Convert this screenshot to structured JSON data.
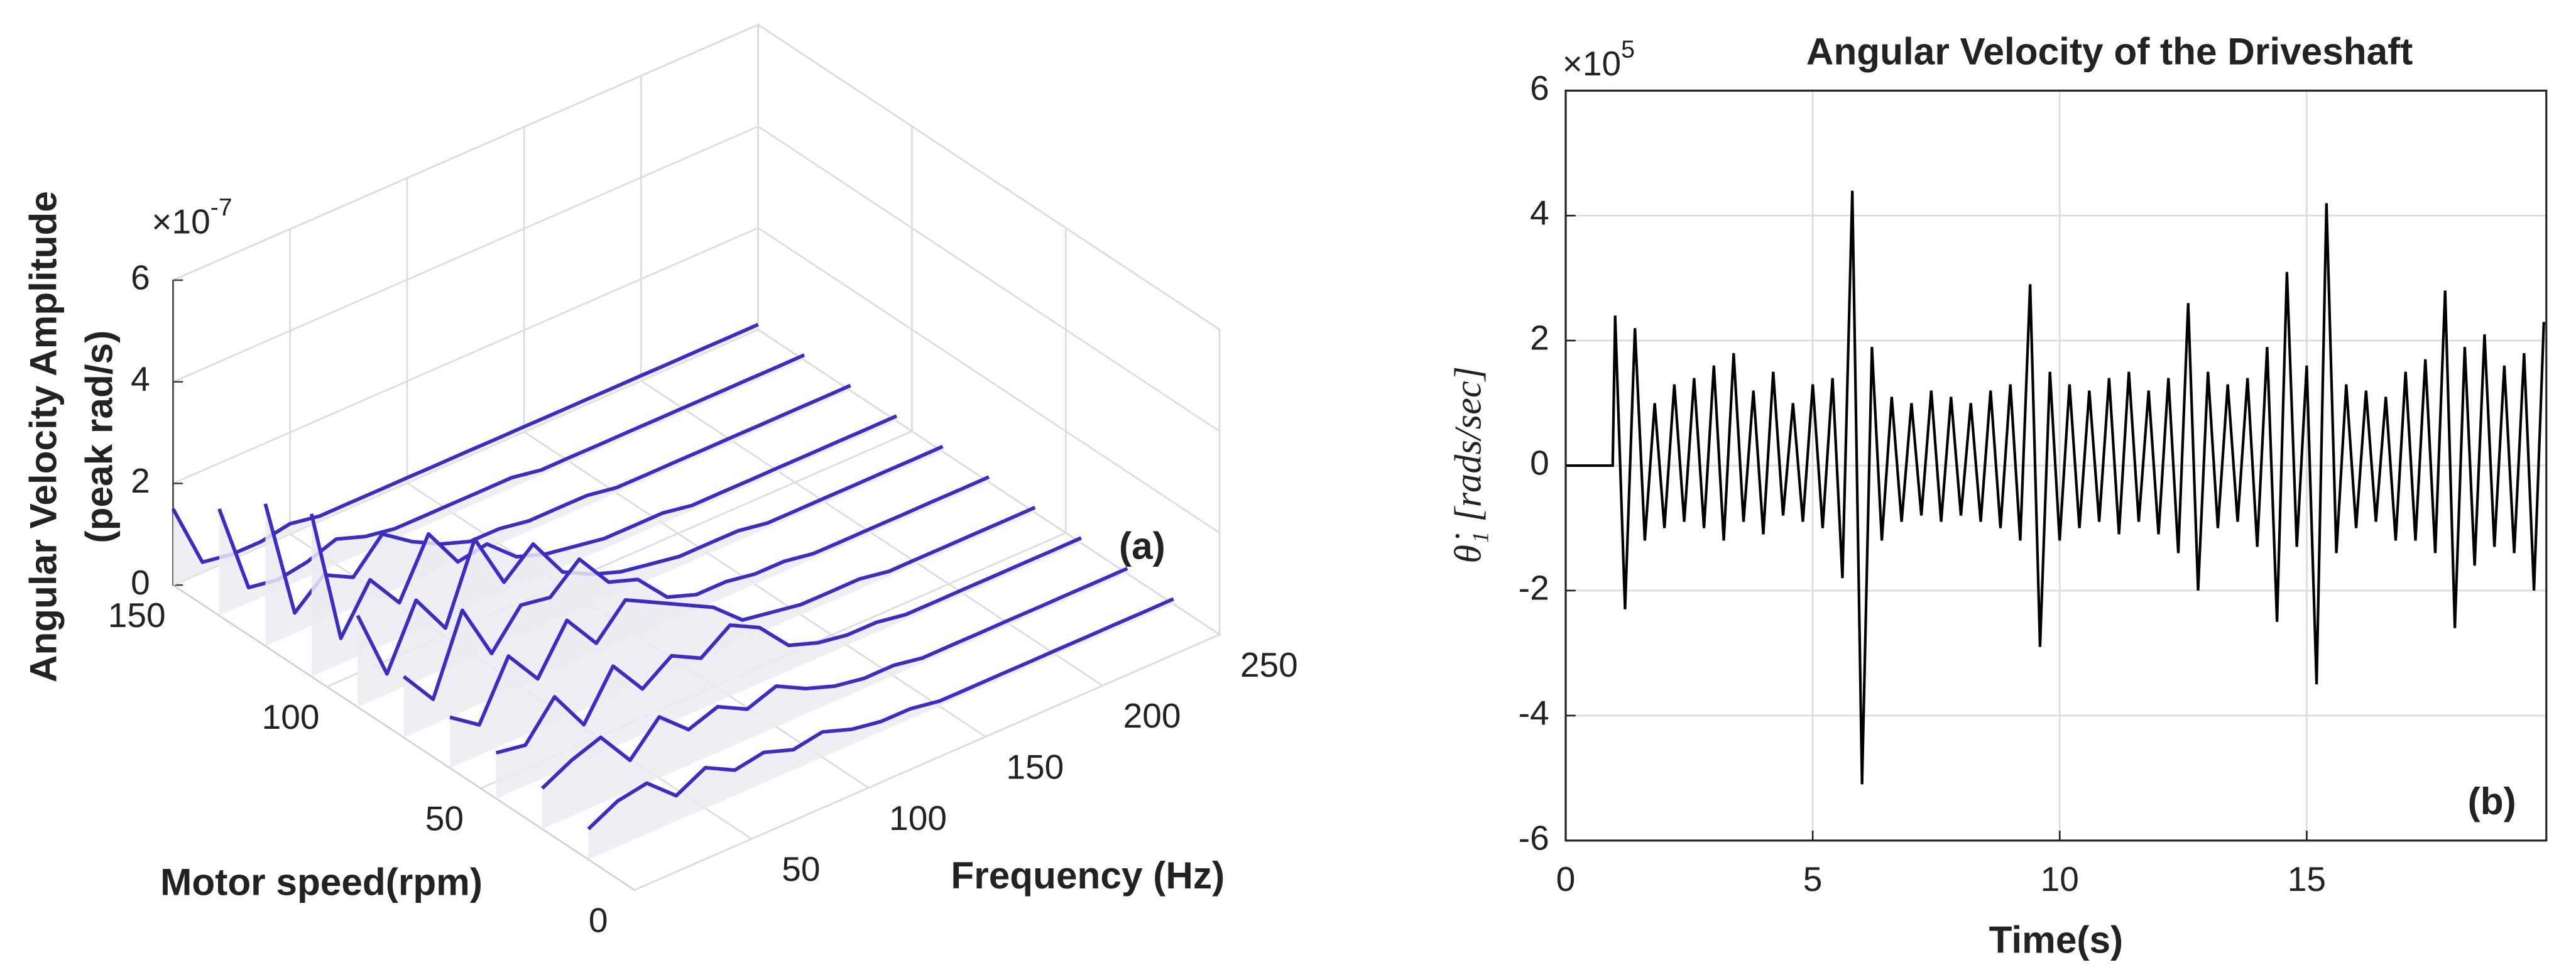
{
  "chart_data": [
    {
      "type": "waterfall",
      "zlabel": [
        "Angular Velocity Amplitude",
        "(peak rad/s)"
      ],
      "zmultiplier": {
        "base": "×10",
        "exponent": "-7"
      },
      "xlabel": "Frequency (Hz)",
      "ylabel": "Motor speed(rpm)",
      "panel_label": "(a)",
      "color": "#3a2cc4",
      "xlim": [
        0,
        250
      ],
      "ylim": [
        0,
        150
      ],
      "zlim": [
        0,
        6
      ],
      "xticks": [
        50,
        100,
        150,
        200,
        250
      ],
      "yticks": [
        0,
        50,
        100,
        150
      ],
      "zticks": [
        0,
        2,
        4,
        6
      ],
      "x": [
        0,
        12.5,
        25,
        37.5,
        50,
        62.5,
        75,
        87.5,
        100,
        112.5,
        125,
        137.5,
        150,
        162.5,
        175,
        187.5,
        200,
        212.5,
        225,
        237.5,
        250
      ],
      "series": [
        {
          "speed": 150,
          "values": [
            1.5,
            0.2,
            0.1,
            0.1,
            0.2,
            0.1,
            0.1,
            0.1,
            0.1,
            0.1,
            0.1,
            0.1,
            0.1,
            0.1,
            0.1,
            0.1,
            0.1,
            0.1,
            0.1,
            0.1,
            0.1
          ]
        },
        {
          "speed": 135,
          "values": [
            2.1,
            0.3,
            0.2,
            0.3,
            0.5,
            0.3,
            0.2,
            0.2,
            0.2,
            0.2,
            0.2,
            0.1,
            0.1,
            0.1,
            0.1,
            0.1,
            0.1,
            0.1,
            0.1,
            0.1,
            0.1
          ]
        },
        {
          "speed": 120,
          "values": [
            2.8,
            0.4,
            0.9,
            0.6,
            1.2,
            0.8,
            0.5,
            0.3,
            0.3,
            0.2,
            0.2,
            0.2,
            0.1,
            0.1,
            0.1,
            0.1,
            0.1,
            0.1,
            0.1,
            0.1,
            0.1
          ]
        },
        {
          "speed": 105,
          "values": [
            3.2,
            0.5,
            1.4,
            0.7,
            1.8,
            1.0,
            1.1,
            0.6,
            0.4,
            0.3,
            0.2,
            0.2,
            0.2,
            0.1,
            0.1,
            0.1,
            0.1,
            0.1,
            0.1,
            0.1,
            0.1
          ]
        },
        {
          "speed": 90,
          "values": [
            1.8,
            0.4,
            1.6,
            0.8,
            2.3,
            1.2,
            1.7,
            0.9,
            0.6,
            0.4,
            0.3,
            0.2,
            0.2,
            0.2,
            0.1,
            0.1,
            0.1,
            0.1,
            0.1,
            0.1,
            0.1
          ]
        },
        {
          "speed": 75,
          "values": [
            1.2,
            0.5,
            2.0,
            0.9,
            1.6,
            1.5,
            2.0,
            1.3,
            1.1,
            0.5,
            0.3,
            0.3,
            0.2,
            0.2,
            0.1,
            0.1,
            0.1,
            0.1,
            0.1,
            0.1,
            0.1
          ]
        },
        {
          "speed": 60,
          "values": [
            1.0,
            0.6,
            1.7,
            1.0,
            1.9,
            1.2,
            1.8,
            1.5,
            1.2,
            0.9,
            0.4,
            0.3,
            0.2,
            0.2,
            0.2,
            0.1,
            0.1,
            0.1,
            0.1,
            0.1,
            0.1
          ]
        },
        {
          "speed": 45,
          "values": [
            0.9,
            0.8,
            1.5,
            0.7,
            1.6,
            0.9,
            1.3,
            1.0,
            1.4,
            1.1,
            0.5,
            0.3,
            0.2,
            0.2,
            0.1,
            0.1,
            0.1,
            0.1,
            0.1,
            0.1,
            0.1
          ]
        },
        {
          "speed": 30,
          "values": [
            0.8,
            1.1,
            1.3,
            0.6,
            1.2,
            0.7,
            0.9,
            0.6,
            0.8,
            0.5,
            0.3,
            0.2,
            0.2,
            0.1,
            0.1,
            0.1,
            0.1,
            0.1,
            0.1,
            0.1,
            0.1
          ]
        },
        {
          "speed": 15,
          "values": [
            0.6,
            0.9,
            1.0,
            0.5,
            0.8,
            0.5,
            0.6,
            0.4,
            0.5,
            0.3,
            0.2,
            0.2,
            0.1,
            0.1,
            0.1,
            0.1,
            0.1,
            0.1,
            0.1,
            0.1,
            0.1
          ]
        }
      ]
    },
    {
      "type": "line",
      "title": "Angular Velocity of the Driveshaft",
      "ymultiplier": {
        "base": "×10",
        "exponent": "5"
      },
      "xlabel": "Time(s)",
      "ylabel": "θ̇₁ [rads/sec]",
      "panel_label": "(b)",
      "color": "#000000",
      "grid": true,
      "xlim": [
        0,
        19.85
      ],
      "ylim": [
        -6,
        6
      ],
      "xticks": [
        0,
        5,
        10,
        15
      ],
      "yticks": [
        -6,
        -4,
        -2,
        0,
        2,
        4,
        6
      ],
      "x": [
        0,
        0.95,
        1.0,
        1.2,
        1.4,
        1.6,
        1.8,
        2.0,
        2.2,
        2.4,
        2.6,
        2.8,
        3.0,
        3.2,
        3.4,
        3.6,
        3.8,
        4.0,
        4.2,
        4.4,
        4.6,
        4.8,
        5.0,
        5.2,
        5.4,
        5.6,
        5.8,
        6.0,
        6.2,
        6.4,
        6.6,
        6.8,
        7.0,
        7.2,
        7.4,
        7.6,
        7.8,
        8.0,
        8.2,
        8.4,
        8.6,
        8.8,
        9.0,
        9.2,
        9.4,
        9.6,
        9.8,
        10.0,
        10.2,
        10.4,
        10.6,
        10.8,
        11.0,
        11.2,
        11.4,
        11.6,
        11.8,
        12.0,
        12.2,
        12.4,
        12.6,
        12.8,
        13.0,
        13.2,
        13.4,
        13.6,
        13.8,
        14.0,
        14.2,
        14.4,
        14.6,
        14.8,
        15.0,
        15.2,
        15.4,
        15.6,
        15.8,
        16.0,
        16.2,
        16.4,
        16.6,
        16.8,
        17.0,
        17.2,
        17.4,
        17.6,
        17.8,
        18.0,
        18.2,
        18.4,
        18.6,
        18.8,
        19.0,
        19.2,
        19.4,
        19.6,
        19.8
      ],
      "values": [
        0,
        0,
        2.4,
        -2.3,
        2.2,
        -1.2,
        1.0,
        -1.0,
        1.3,
        -0.9,
        1.4,
        -1.0,
        1.6,
        -1.2,
        1.8,
        -0.9,
        1.2,
        -1.1,
        1.5,
        -0.8,
        1.0,
        -0.9,
        1.3,
        -1.0,
        1.4,
        -1.8,
        4.4,
        -5.1,
        1.9,
        -1.2,
        1.1,
        -0.9,
        1.0,
        -0.8,
        1.2,
        -0.9,
        1.1,
        -0.8,
        1.0,
        -0.9,
        1.2,
        -1.0,
        1.3,
        -1.2,
        2.9,
        -2.9,
        1.5,
        -1.2,
        1.3,
        -1.0,
        1.2,
        -0.9,
        1.4,
        -1.1,
        1.5,
        -0.9,
        1.2,
        -1.1,
        1.4,
        -1.4,
        2.6,
        -2.0,
        1.5,
        -1.0,
        1.3,
        -0.9,
        1.4,
        -1.3,
        1.9,
        -2.5,
        3.1,
        -1.3,
        1.6,
        -3.5,
        4.2,
        -1.4,
        1.3,
        -1.0,
        1.2,
        -0.9,
        1.1,
        -1.2,
        1.5,
        -1.2,
        1.7,
        -1.4,
        2.8,
        -2.6,
        1.9,
        -1.6,
        2.1,
        -1.3,
        1.6,
        -1.4,
        1.8,
        -2.0,
        2.3
      ]
    }
  ]
}
